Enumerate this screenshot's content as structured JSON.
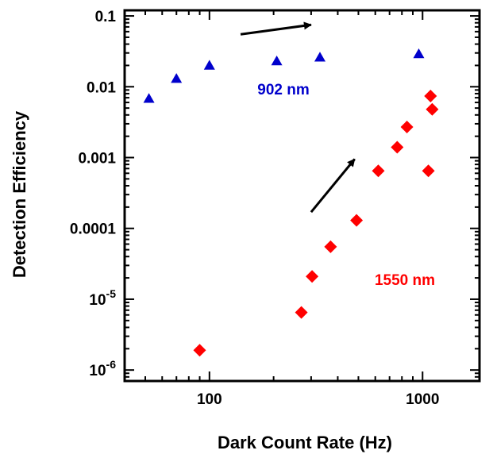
{
  "chart_data": {
    "type": "scatter",
    "xlabel": "Dark Count Rate (Hz)",
    "ylabel": "Detection Efficiency",
    "xscale": "log",
    "yscale": "log",
    "xlim": [
      40,
      1850
    ],
    "ylim": [
      7e-07,
      0.12
    ],
    "xticks": [
      {
        "value": 100,
        "label": "100"
      },
      {
        "value": 1000,
        "label": "1000"
      }
    ],
    "yticks": [
      {
        "value": 0.1,
        "label": "0.1"
      },
      {
        "value": 0.01,
        "label": "0.01"
      },
      {
        "value": 0.001,
        "label": "0.001"
      },
      {
        "value": 0.0001,
        "label": "0.0001"
      },
      {
        "value": 1e-05,
        "base": "10",
        "exp": "-5"
      },
      {
        "value": 1e-06,
        "base": "10",
        "exp": "-6"
      }
    ],
    "grid": false,
    "series": [
      {
        "name": "902 nm",
        "marker": "triangle",
        "color": "#0000cc",
        "points": [
          {
            "x": 52,
            "y": 0.0068
          },
          {
            "x": 70,
            "y": 0.013
          },
          {
            "x": 100,
            "y": 0.02
          },
          {
            "x": 207,
            "y": 0.023
          },
          {
            "x": 330,
            "y": 0.026
          },
          {
            "x": 960,
            "y": 0.029
          }
        ]
      },
      {
        "name": "1550 nm",
        "marker": "diamond",
        "color": "#ff0000",
        "points": [
          {
            "x": 90,
            "y": 1.9e-06
          },
          {
            "x": 270,
            "y": 6.5e-06
          },
          {
            "x": 303,
            "y": 2.1e-05
          },
          {
            "x": 370,
            "y": 5.5e-05
          },
          {
            "x": 490,
            "y": 0.00013
          },
          {
            "x": 620,
            "y": 0.00065
          },
          {
            "x": 760,
            "y": 0.0014
          },
          {
            "x": 845,
            "y": 0.0027
          },
          {
            "x": 1065,
            "y": 0.00065
          },
          {
            "x": 1090,
            "y": 0.0074
          },
          {
            "x": 1110,
            "y": 0.0048
          }
        ]
      }
    ],
    "annotations": [
      {
        "type": "arrow",
        "from": {
          "x": 140,
          "y": 0.055
        },
        "to": {
          "x": 300,
          "y": 0.075
        }
      },
      {
        "type": "arrow",
        "from": {
          "x": 300,
          "y": 0.00017
        },
        "to": {
          "x": 480,
          "y": 0.00095
        }
      }
    ]
  }
}
